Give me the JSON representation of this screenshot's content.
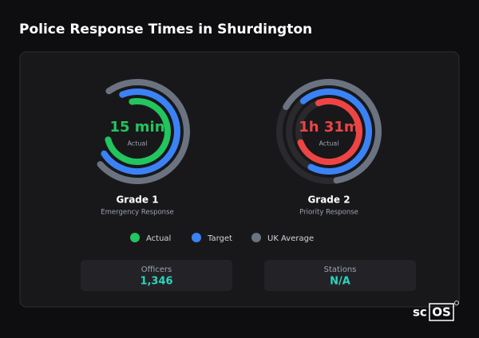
{
  "title": "Police Response Times in Shurdington",
  "gauges": [
    {
      "value": "15 min",
      "label": "Actual",
      "name": "Grade 1",
      "subtitle": "Emergency Response"
    },
    {
      "value": "1h 31m",
      "label": "Actual",
      "name": "Grade 2",
      "subtitle": "Priority Response"
    }
  ],
  "legend": [
    "Actual",
    "Target",
    "UK Average"
  ],
  "stats": [
    {
      "label": "Officers",
      "value": "1,346"
    },
    {
      "label": "Stations",
      "value": "N/A"
    }
  ],
  "brand": {
    "prefix": "sc",
    "boxed": "OS"
  }
}
